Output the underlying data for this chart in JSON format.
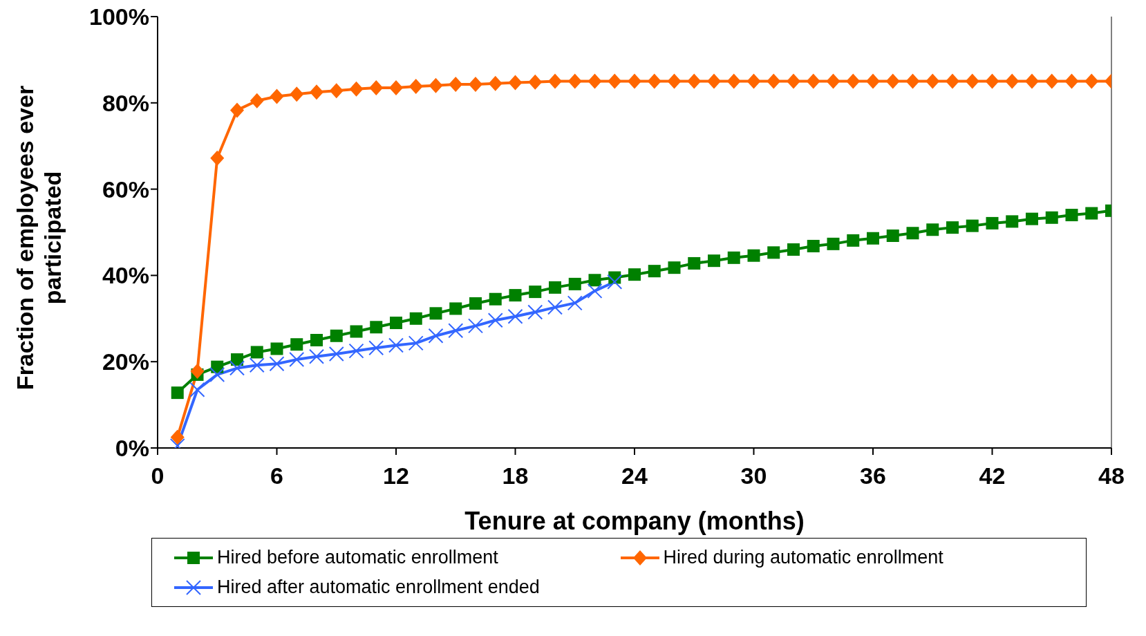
{
  "chart_data": {
    "type": "line",
    "xlabel": "Tenure at company (months)",
    "ylabel": "Fraction of employees ever participated",
    "xlim": [
      0,
      48
    ],
    "xticks": [
      0,
      6,
      12,
      18,
      24,
      30,
      36,
      42,
      48
    ],
    "ylim": [
      0,
      100
    ],
    "yticks": [
      {
        "value": 0,
        "label": "0%"
      },
      {
        "value": 20,
        "label": "20%"
      },
      {
        "value": 40,
        "label": "40%"
      },
      {
        "value": 60,
        "label": "60%"
      },
      {
        "value": 80,
        "label": "80%"
      },
      {
        "value": 100,
        "label": "100%"
      }
    ],
    "grid": false,
    "legend": "bottom",
    "line_style": "solid",
    "x": [
      1,
      2,
      3,
      4,
      5,
      6,
      7,
      8,
      9,
      10,
      11,
      12,
      13,
      14,
      15,
      16,
      17,
      18,
      19,
      20,
      21,
      22,
      23,
      24,
      25,
      26,
      27,
      28,
      29,
      30,
      31,
      32,
      33,
      34,
      35,
      36,
      37,
      38,
      39,
      40,
      41,
      42,
      43,
      44,
      45,
      46,
      47,
      48
    ],
    "series": [
      {
        "name": "Hired before automatic enrollment",
        "color": "#008000",
        "marker": "square",
        "values": [
          12.8,
          17,
          18.8,
          20.5,
          22.2,
          23,
          24,
          25,
          26,
          27,
          28,
          29,
          30,
          31.2,
          32.3,
          33.5,
          34.5,
          35.4,
          36.2,
          37.2,
          38,
          38.9,
          39.5,
          40.2,
          41,
          41.8,
          42.8,
          43.4,
          44.1,
          44.6,
          45.3,
          46,
          46.8,
          47.3,
          48.1,
          48.6,
          49.2,
          49.8,
          50.6,
          51.1,
          51.5,
          52.1,
          52.5,
          53.1,
          53.4,
          54,
          54.4,
          55
        ]
      },
      {
        "name": "Hired during automatic enrollment",
        "color": "#ff6600",
        "marker": "diamond",
        "values": [
          2.5,
          17.8,
          67.2,
          78.3,
          80.5,
          81.5,
          82,
          82.5,
          82.8,
          83.2,
          83.5,
          83.5,
          83.8,
          84,
          84.3,
          84.3,
          84.5,
          84.7,
          84.8,
          85,
          85,
          85,
          85,
          85,
          85,
          85,
          85,
          85,
          85,
          85,
          85,
          85,
          85,
          85,
          85,
          85,
          85,
          85,
          85,
          85,
          85,
          85,
          85,
          85,
          85,
          85,
          85,
          85
        ]
      },
      {
        "name": "Hired after automatic enrollment ended",
        "color": "#3366ff",
        "marker": "cross",
        "values": [
          0.5,
          13.5,
          17,
          18.5,
          19.2,
          19.5,
          20.5,
          21.2,
          21.8,
          22.5,
          23.2,
          23.8,
          24.3,
          26,
          27.2,
          28.3,
          29.6,
          30.5,
          31.5,
          32.6,
          33.6,
          36.4,
          38.5,
          null,
          null,
          null,
          null,
          null,
          null,
          null,
          null,
          null,
          null,
          null,
          null,
          null,
          null,
          null,
          null,
          null,
          null,
          null,
          null,
          null,
          null,
          null,
          null,
          null
        ]
      }
    ]
  }
}
